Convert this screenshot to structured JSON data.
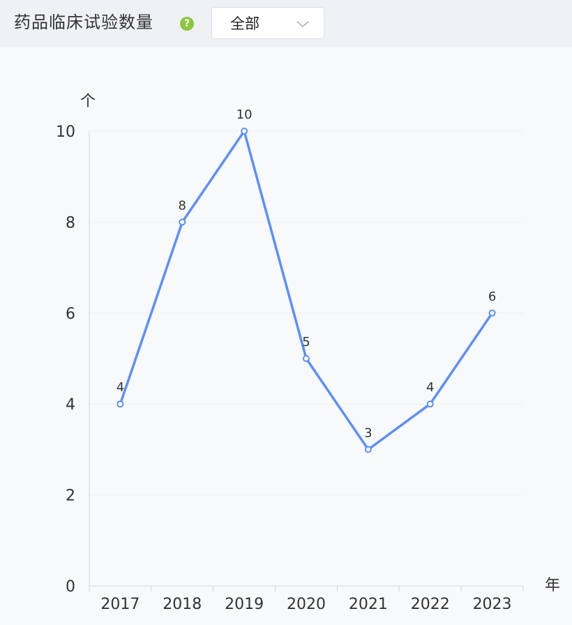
{
  "header": {
    "title": "药品临床试验数量",
    "help_icon": "question-circle-icon",
    "filter": {
      "selected": "全部",
      "icon": "chevron-down-icon"
    }
  },
  "colors": {
    "line": "#5b8ff9",
    "help_icon": "#8cc63f",
    "grid": "#eef0f3",
    "axis": "#d9d9d9"
  },
  "chart_data": {
    "type": "line",
    "categories": [
      "2017",
      "2018",
      "2019",
      "2020",
      "2021",
      "2022",
      "2023"
    ],
    "series": [
      {
        "values": [
          4,
          8,
          10,
          5,
          3,
          4,
          6
        ]
      }
    ],
    "data_labels": [
      "4",
      "8",
      "10",
      "5",
      "3",
      "4",
      "6"
    ],
    "yticks": [
      "0",
      "2",
      "4",
      "6",
      "8",
      "10"
    ],
    "ylim": [
      0,
      10
    ],
    "ylabel": "个",
    "xlabel": "年",
    "grid": true,
    "legend": "none"
  }
}
